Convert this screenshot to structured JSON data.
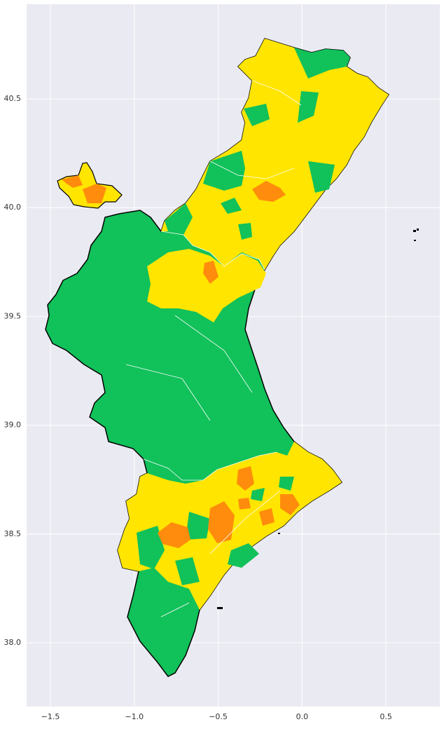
{
  "chart_data": {
    "type": "map",
    "xlim": [
      -1.642,
      0.821
    ],
    "ylim": [
      37.707,
      40.935
    ],
    "xticks": [
      {
        "value": -1.5,
        "label": "−1.5"
      },
      {
        "value": -1.0,
        "label": "−1.0"
      },
      {
        "value": -0.5,
        "label": "−0.5"
      },
      {
        "value": 0.0,
        "label": "0.0"
      },
      0.5
    ],
    "yticks": [
      {
        "value": 38.0,
        "label": "38.0"
      },
      38.5,
      {
        "value": 39.0,
        "label": "39.0"
      },
      39.5,
      {
        "value": 40.0,
        "label": "40.0"
      },
      40.5
    ],
    "grid": true
  }
}
